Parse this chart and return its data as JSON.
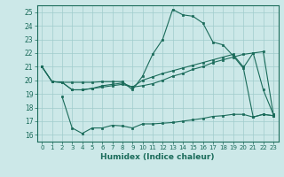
{
  "xlabel": "Humidex (Indice chaleur)",
  "bg_color": "#cce8e8",
  "line_color": "#1a6b5a",
  "grid_color": "#a0cccc",
  "xlim": [
    -0.5,
    23.5
  ],
  "ylim": [
    15.5,
    25.5
  ],
  "xticks": [
    0,
    1,
    2,
    3,
    4,
    5,
    6,
    7,
    8,
    9,
    10,
    11,
    12,
    13,
    14,
    15,
    16,
    17,
    18,
    19,
    20,
    21,
    22,
    23
  ],
  "yticks": [
    16,
    17,
    18,
    19,
    20,
    21,
    22,
    23,
    24,
    25
  ],
  "line1_x": [
    0,
    1,
    2,
    3,
    4,
    5,
    6,
    7,
    8,
    9,
    10,
    11,
    12,
    13,
    14,
    15,
    16,
    17,
    18,
    19,
    20,
    21,
    22,
    23
  ],
  "line1_y": [
    21.0,
    19.9,
    19.85,
    19.85,
    19.85,
    19.85,
    19.9,
    19.9,
    19.9,
    19.3,
    20.3,
    21.9,
    23.0,
    25.2,
    24.8,
    24.7,
    24.2,
    22.8,
    22.6,
    21.8,
    20.9,
    22.0,
    19.3,
    17.5
  ],
  "line2_x": [
    0,
    1,
    2,
    3,
    4,
    5,
    6,
    7,
    8,
    9,
    10,
    11,
    12,
    13,
    14,
    15,
    16,
    17,
    18,
    19,
    20,
    21,
    22,
    23
  ],
  "line2_y": [
    21.0,
    19.9,
    19.85,
    19.3,
    19.3,
    19.4,
    19.5,
    19.6,
    19.7,
    19.5,
    19.6,
    19.75,
    20.0,
    20.3,
    20.5,
    20.8,
    21.0,
    21.3,
    21.5,
    21.7,
    21.9,
    22.0,
    22.1,
    17.5
  ],
  "line3_x": [
    2,
    3,
    4,
    5,
    6,
    7,
    8,
    9,
    10,
    11,
    12,
    13,
    14,
    15,
    16,
    17,
    18,
    19,
    20,
    21,
    22,
    23
  ],
  "line3_y": [
    18.8,
    16.5,
    16.1,
    16.5,
    16.5,
    16.7,
    16.65,
    16.5,
    16.8,
    16.8,
    16.85,
    16.9,
    17.0,
    17.1,
    17.2,
    17.35,
    17.4,
    17.5,
    17.5,
    17.3,
    17.5,
    17.4
  ],
  "line4_x": [
    0,
    1,
    2,
    3,
    4,
    5,
    6,
    7,
    8,
    9,
    10,
    11,
    12,
    13,
    14,
    15,
    16,
    17,
    18,
    19,
    20,
    21,
    22,
    23
  ],
  "line4_y": [
    21.0,
    19.9,
    19.85,
    19.3,
    19.3,
    19.4,
    19.6,
    19.7,
    19.8,
    19.5,
    20.0,
    20.25,
    20.5,
    20.7,
    20.9,
    21.1,
    21.3,
    21.5,
    21.7,
    21.9,
    21.0,
    17.3,
    17.5,
    17.4
  ]
}
